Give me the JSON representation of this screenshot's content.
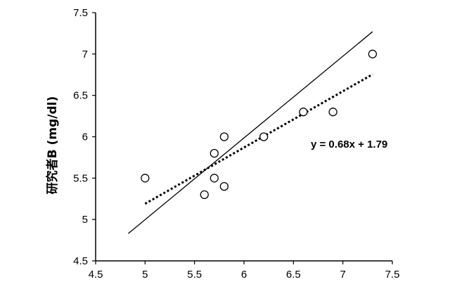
{
  "chart_data": {
    "type": "scatter",
    "ylabel": "研究者B (mg/dl)",
    "xlim": [
      4.5,
      7.5
    ],
    "ylim": [
      4.5,
      7.5
    ],
    "xticks": [
      "4.5",
      "5",
      "5.5",
      "6",
      "6.5",
      "7",
      "7.5"
    ],
    "yticks": [
      "4.5",
      "5",
      "5.5",
      "6",
      "6.5",
      "7",
      "7.5"
    ],
    "grid": false,
    "points": [
      {
        "x": 5.0,
        "y": 5.5
      },
      {
        "x": 5.6,
        "y": 5.3
      },
      {
        "x": 5.7,
        "y": 5.8
      },
      {
        "x": 5.7,
        "y": 5.5
      },
      {
        "x": 5.8,
        "y": 6.0
      },
      {
        "x": 5.8,
        "y": 5.4
      },
      {
        "x": 6.2,
        "y": 6.0
      },
      {
        "x": 6.6,
        "y": 6.3
      },
      {
        "x": 6.9,
        "y": 6.3
      },
      {
        "x": 7.3,
        "y": 7.0
      }
    ],
    "identity_line": {
      "x": [
        4.83,
        7.3
      ],
      "y": [
        4.83,
        7.27
      ]
    },
    "trend_line": {
      "slope": 0.68,
      "intercept": 1.79,
      "x": [
        5.0,
        7.3
      ],
      "style": "dotted"
    },
    "annotation": "y = 0.68x + 1.79"
  }
}
